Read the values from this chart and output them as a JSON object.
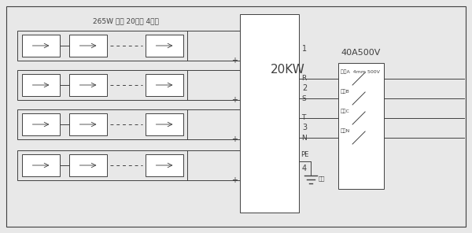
{
  "title": "265W 组件 20串联 4并联",
  "inverter_label": "20KW",
  "breaker_label": "40A500V",
  "bg_color": "#e8e8e8",
  "line_color": "#404040",
  "fig_w": 6.0,
  "fig_h": 2.96,
  "right_labels": [
    "相线A  4mm 500V",
    "相线B",
    "相线C",
    "零线N"
  ],
  "right_terminals": [
    "R",
    "S",
    "T",
    "N",
    "PE"
  ],
  "ground_label": "接地",
  "string_labels": [
    "1",
    "2",
    "3",
    "4"
  ]
}
